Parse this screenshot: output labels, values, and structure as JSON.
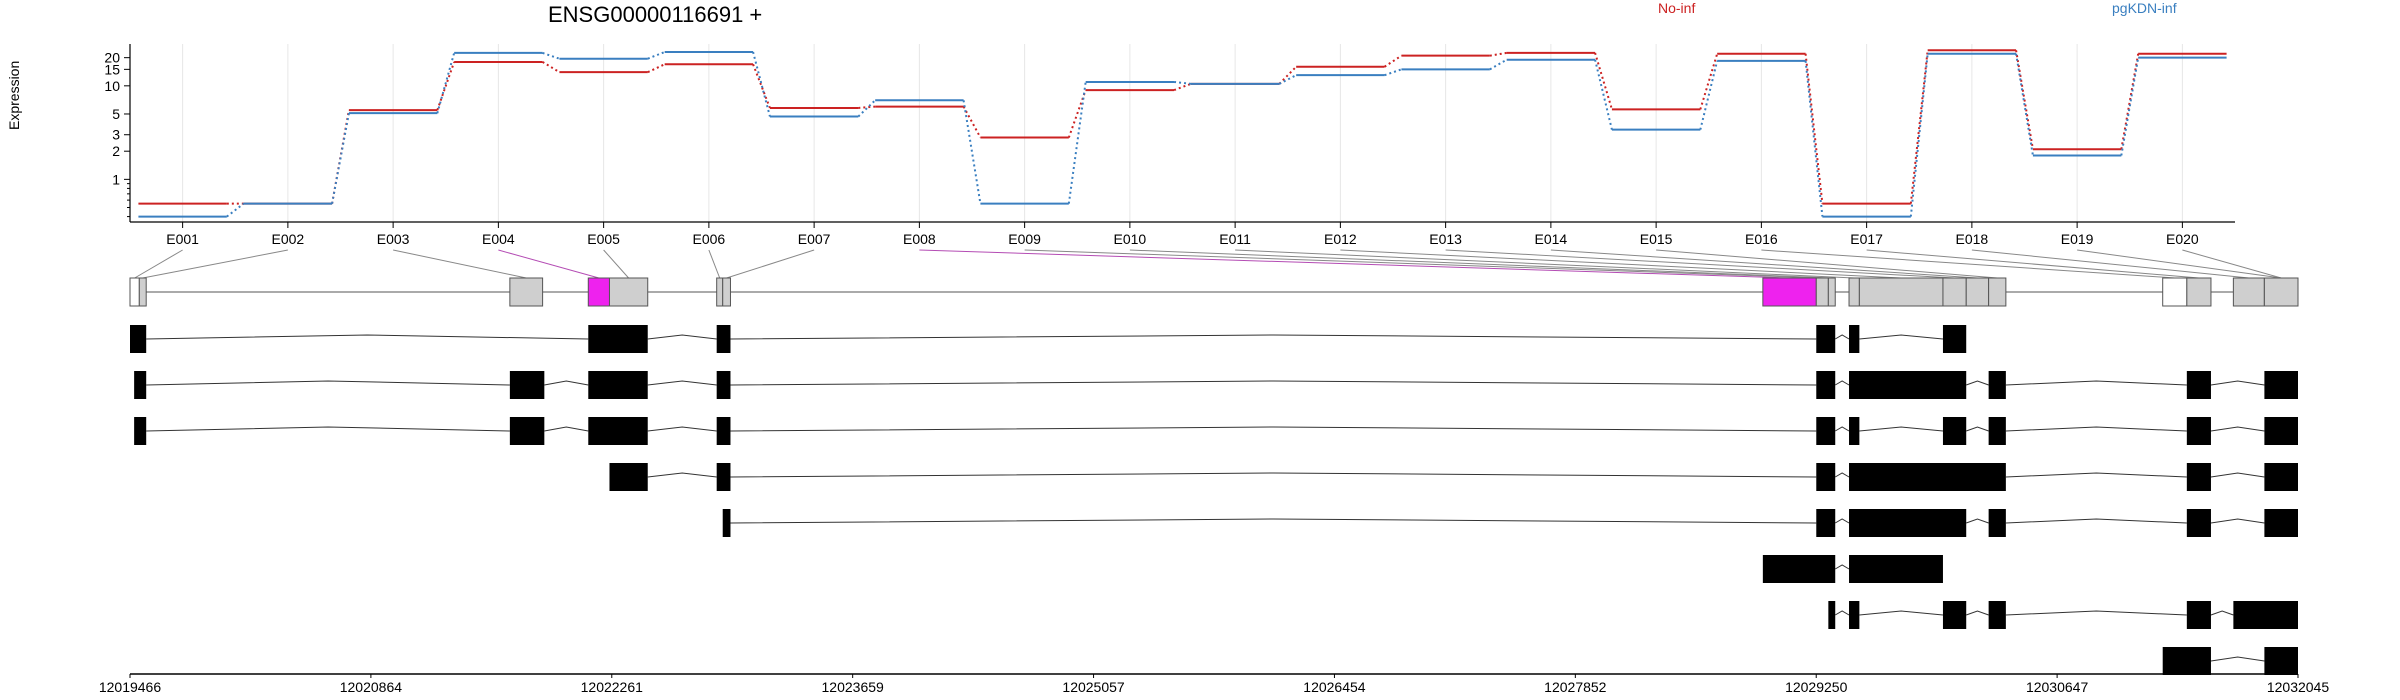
{
  "chart_data": {
    "type": "line",
    "title": "ENSG00000116691 +",
    "ylabel": "Expression",
    "yscale": "log",
    "yticks": [
      1,
      2,
      3,
      5,
      10,
      15,
      20
    ],
    "categories": [
      "E001",
      "E002",
      "E003",
      "E004",
      "E005",
      "E006",
      "E007",
      "E008",
      "E009",
      "E010",
      "E011",
      "E012",
      "E013",
      "E014",
      "E015",
      "E016",
      "E017",
      "E018",
      "E019",
      "E020"
    ],
    "series": [
      {
        "name": "No-inf",
        "color": "#cc2222",
        "values": [
          0.55,
          0.55,
          5.5,
          18,
          14,
          17,
          5.8,
          6.0,
          2.8,
          9.0,
          10.5,
          16,
          21,
          22.5,
          5.6,
          22,
          0.55,
          24,
          2.1,
          22
        ]
      },
      {
        "name": "pgKDN-inf",
        "color": "#3a7fc0",
        "values": [
          0.4,
          0.55,
          5.1,
          22.5,
          19.5,
          23,
          4.7,
          7.0,
          0.55,
          11,
          10.5,
          13,
          15,
          19,
          3.4,
          18.5,
          0.4,
          22,
          1.8,
          20
        ]
      }
    ],
    "xaxis": {
      "ticks": [
        "12019466",
        "12020864",
        "12022261",
        "12023659",
        "12025057",
        "12026454",
        "12027852",
        "12029250",
        "12030647",
        "12032045"
      ],
      "range": [
        12019466,
        12032045
      ]
    },
    "exons": [
      {
        "id": "E001",
        "start": 12019466,
        "end": 12019520,
        "highlight": false,
        "filled": false
      },
      {
        "id": "E002",
        "start": 12019520,
        "end": 12019560,
        "highlight": false,
        "filled": true
      },
      {
        "id": "E003",
        "start": 12021670,
        "end": 12021860,
        "highlight": false,
        "filled": true
      },
      {
        "id": "E004",
        "start": 12022125,
        "end": 12022248,
        "highlight": true,
        "filled": true
      },
      {
        "id": "E005",
        "start": 12022248,
        "end": 12022470,
        "highlight": false,
        "filled": true
      },
      {
        "id": "E006",
        "start": 12022870,
        "end": 12022905,
        "highlight": false,
        "filled": true
      },
      {
        "id": "E007",
        "start": 12022905,
        "end": 12022950,
        "highlight": false,
        "filled": true
      },
      {
        "id": "E008",
        "start": 12028940,
        "end": 12029250,
        "highlight": true,
        "filled": true
      },
      {
        "id": "E009",
        "start": 12029250,
        "end": 12029320,
        "highlight": false,
        "filled": true
      },
      {
        "id": "E010",
        "start": 12029320,
        "end": 12029360,
        "highlight": false,
        "filled": true
      },
      {
        "id": "E011",
        "start": 12029440,
        "end": 12029500,
        "highlight": false,
        "filled": true
      },
      {
        "id": "E012",
        "start": 12029500,
        "end": 12029985,
        "highlight": false,
        "filled": true
      },
      {
        "id": "E013",
        "start": 12029985,
        "end": 12030120,
        "highlight": false,
        "filled": true
      },
      {
        "id": "E014",
        "start": 12030120,
        "end": 12030250,
        "highlight": false,
        "filled": true
      },
      {
        "id": "E015",
        "start": 12030250,
        "end": 12030350,
        "highlight": false,
        "filled": true
      },
      {
        "id": "E016",
        "start": 12031260,
        "end": 12031400,
        "highlight": false,
        "filled": false
      },
      {
        "id": "E017",
        "start": 12031400,
        "end": 12031540,
        "highlight": false,
        "filled": true
      },
      {
        "id": "E018",
        "start": 12031670,
        "end": 12031850,
        "highlight": false,
        "filled": true
      },
      {
        "id": "E019",
        "start": 12031850,
        "end": 12032045,
        "highlight": false,
        "filled": true
      },
      {
        "id": "E020",
        "start": 12031850,
        "end": 12032045,
        "highlight": false,
        "filled": true
      }
    ],
    "transcripts": [
      [
        [
          12019466,
          12019560
        ],
        [
          12022125,
          12022470
        ],
        [
          12022870,
          12022950
        ],
        [
          12029250,
          12029360
        ],
        [
          12029440,
          12029500
        ],
        [
          12029985,
          12030120
        ]
      ],
      [
        [
          12019490,
          12019560
        ],
        [
          12021670,
          12021870
        ],
        [
          12022125,
          12022470
        ],
        [
          12022870,
          12022950
        ],
        [
          12029250,
          12029360
        ],
        [
          12029440,
          12030120
        ],
        [
          12030250,
          12030350
        ],
        [
          12031400,
          12031540
        ],
        [
          12031850,
          12032045
        ]
      ],
      [
        [
          12019490,
          12019560
        ],
        [
          12021670,
          12021870
        ],
        [
          12022125,
          12022470
        ],
        [
          12022870,
          12022950
        ],
        [
          12029250,
          12029360
        ],
        [
          12029440,
          12029500
        ],
        [
          12029985,
          12030120
        ],
        [
          12030250,
          12030350
        ],
        [
          12031400,
          12031540
        ],
        [
          12031850,
          12032045
        ]
      ],
      [
        [
          12022248,
          12022470
        ],
        [
          12022870,
          12022950
        ],
        [
          12029250,
          12029360
        ],
        [
          12029440,
          12030350
        ],
        [
          12031400,
          12031540
        ],
        [
          12031850,
          12032045
        ]
      ],
      [
        [
          12022905,
          12022950
        ],
        [
          12029250,
          12029360
        ],
        [
          12029440,
          12030120
        ],
        [
          12030250,
          12030350
        ],
        [
          12031400,
          12031540
        ],
        [
          12031850,
          12032045
        ]
      ],
      [
        [
          12028940,
          12029360
        ],
        [
          12029440,
          12029985
        ]
      ],
      [
        [
          12029320,
          12029360
        ],
        [
          12029440,
          12029500
        ],
        [
          12029985,
          12030120
        ],
        [
          12030250,
          12030350
        ],
        [
          12031400,
          12031540
        ],
        [
          12031670,
          12032045
        ]
      ],
      [
        [
          12031260,
          12031540
        ],
        [
          12031850,
          12032045
        ]
      ]
    ]
  }
}
